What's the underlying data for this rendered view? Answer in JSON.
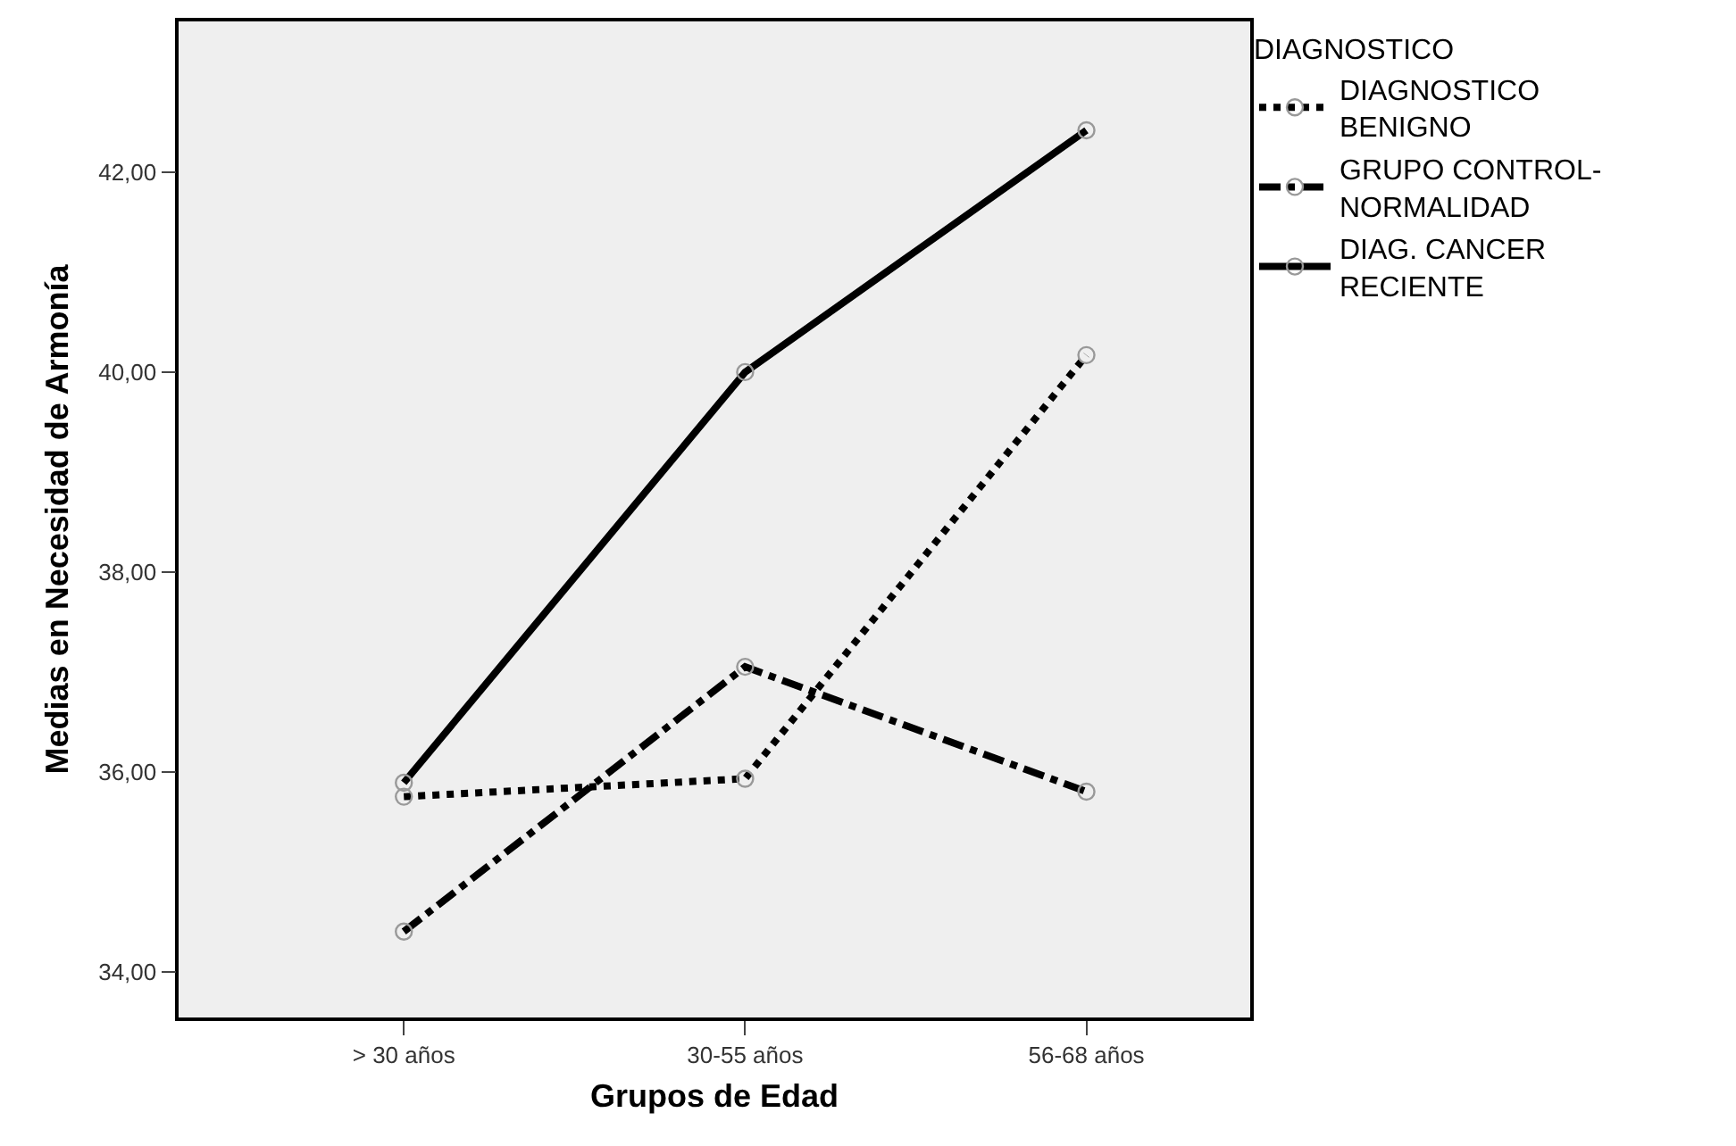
{
  "chart_data": {
    "type": "line",
    "xlabel": "Grupos de Edad",
    "ylabel": "Medias en Necesidad de Armonía",
    "legend_title": "DIAGNOSTICO",
    "categories": [
      "> 30 años",
      "30-55 años",
      "56-68 años"
    ],
    "series": [
      {
        "name": "DIAGNOSTICO BENIGNO",
        "color": "#000000",
        "line_style": "dotted",
        "values": [
          35.75,
          35.93,
          40.17
        ]
      },
      {
        "name": "GRUPO CONTROL-NORMALIDAD",
        "color": "#000000",
        "line_style": "dashed",
        "values": [
          34.4,
          37.05,
          35.8
        ]
      },
      {
        "name": "DIAG. CANCER RECIENTE",
        "color": "#000000",
        "line_style": "solid",
        "values": [
          35.89,
          40.0,
          42.42
        ]
      }
    ],
    "ylim": [
      33.54,
      43.51
    ],
    "yticks": [
      {
        "value": 34,
        "label": "34,00"
      },
      {
        "value": 36,
        "label": "36,00"
      },
      {
        "value": 38,
        "label": "38,00"
      },
      {
        "value": 40,
        "label": "40,00"
      },
      {
        "value": 42,
        "label": "42,00"
      }
    ],
    "marker": "circle",
    "grid": false,
    "legend": "top right"
  }
}
